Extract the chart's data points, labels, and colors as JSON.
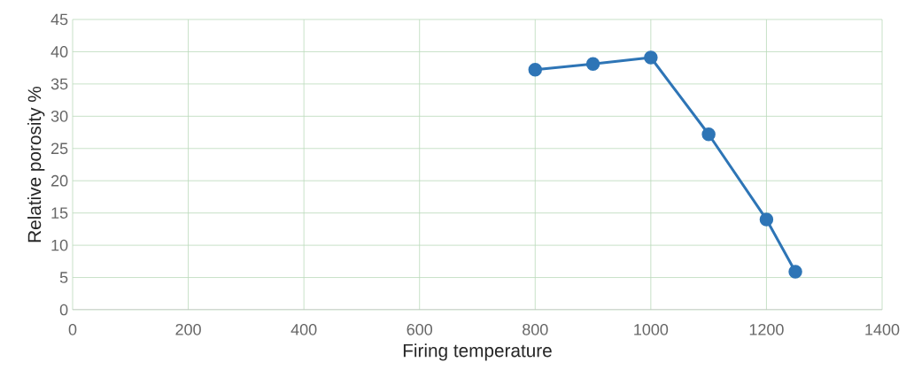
{
  "chart_data": {
    "type": "line",
    "xlabel": "Firing temperature",
    "ylabel": "Relative porosity %",
    "x": [
      800,
      900,
      1000,
      1100,
      1200,
      1250
    ],
    "series": [
      {
        "color": "#2e75b6",
        "values": [
          37.2,
          38.1,
          39.1,
          27.2,
          14.0,
          5.9
        ]
      }
    ],
    "xlim": [
      0,
      1400
    ],
    "xticks": [
      0,
      200,
      400,
      600,
      800,
      1000,
      1200,
      1400
    ],
    "ylim": [
      0,
      45
    ],
    "yticks": [
      0,
      5,
      10,
      15,
      20,
      25,
      30,
      35,
      40,
      45
    ],
    "grid": true,
    "marker": "circle",
    "line_style": "solid"
  }
}
